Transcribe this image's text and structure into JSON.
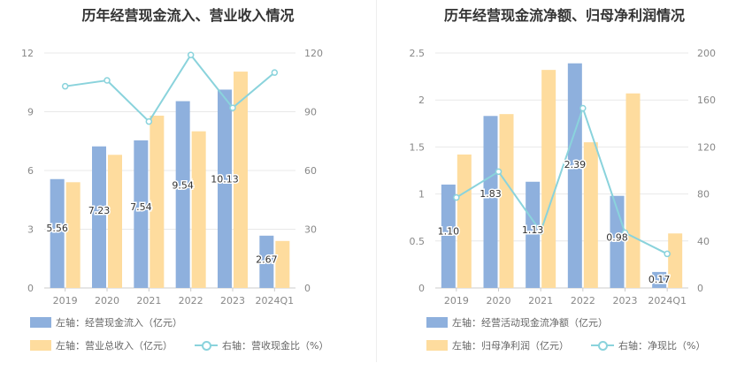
{
  "colors": {
    "bar1": "#8eb0dd",
    "bar2": "#fedc9e",
    "line": "#8ad3dc",
    "grid": "#e8e8e8"
  },
  "chart_data": [
    {
      "type": "bar",
      "title": "历年经营现金流入、营业收入情况",
      "categories": [
        "2019",
        "2020",
        "2021",
        "2022",
        "2023",
        "2024Q1"
      ],
      "left_axis": {
        "ylim": [
          0,
          12
        ],
        "ticks": [
          "0",
          "3",
          "6",
          "9",
          "12"
        ]
      },
      "right_axis": {
        "ylim": [
          0,
          120
        ],
        "ticks": [
          "0",
          "30",
          "60",
          "90",
          "120"
        ]
      },
      "series": [
        {
          "name": "左轴：经营现金流入（亿元）",
          "kind": "bar",
          "axis": "left",
          "values": [
            5.56,
            7.23,
            7.54,
            9.54,
            10.13,
            2.67
          ],
          "labels": [
            "5.56",
            "7.23",
            "7.54",
            "9.54",
            "10.13",
            "2.67"
          ]
        },
        {
          "name": "左轴：营业总收入（亿元）",
          "kind": "bar",
          "axis": "left",
          "values": [
            5.4,
            6.8,
            8.8,
            8.0,
            11.05,
            2.4
          ]
        },
        {
          "name": "右轴：营收现金比（%）",
          "kind": "line",
          "axis": "right",
          "values": [
            103,
            106,
            85,
            119,
            92,
            110
          ]
        }
      ],
      "grid": true,
      "legend_position": "bottom-left"
    },
    {
      "type": "bar",
      "title": "历年经营现金流净额、归母净利润情况",
      "categories": [
        "2019",
        "2020",
        "2021",
        "2022",
        "2023",
        "2024Q1"
      ],
      "left_axis": {
        "ylim": [
          0,
          2.5
        ],
        "ticks": [
          "0",
          "0.5",
          "1",
          "1.5",
          "2",
          "2.5"
        ]
      },
      "right_axis": {
        "ylim": [
          0,
          200
        ],
        "ticks": [
          "0",
          "40",
          "80",
          "120",
          "160",
          "200"
        ]
      },
      "series": [
        {
          "name": "左轴：经营活动现金流净额（亿元）",
          "kind": "bar",
          "axis": "left",
          "values": [
            1.1,
            1.83,
            1.13,
            2.39,
            0.98,
            0.17
          ],
          "labels": [
            "1.10",
            "1.83",
            "1.13",
            "2.39",
            "0.98",
            "0.17"
          ]
        },
        {
          "name": "左轴：归母净利润（亿元）",
          "kind": "bar",
          "axis": "left",
          "values": [
            1.42,
            1.85,
            2.32,
            1.55,
            2.07,
            0.58
          ]
        },
        {
          "name": "右轴：净现比（%）",
          "kind": "line",
          "axis": "right",
          "values": [
            77,
            99,
            48,
            153,
            47,
            29
          ]
        }
      ],
      "grid": true,
      "legend_position": "bottom-left"
    }
  ]
}
